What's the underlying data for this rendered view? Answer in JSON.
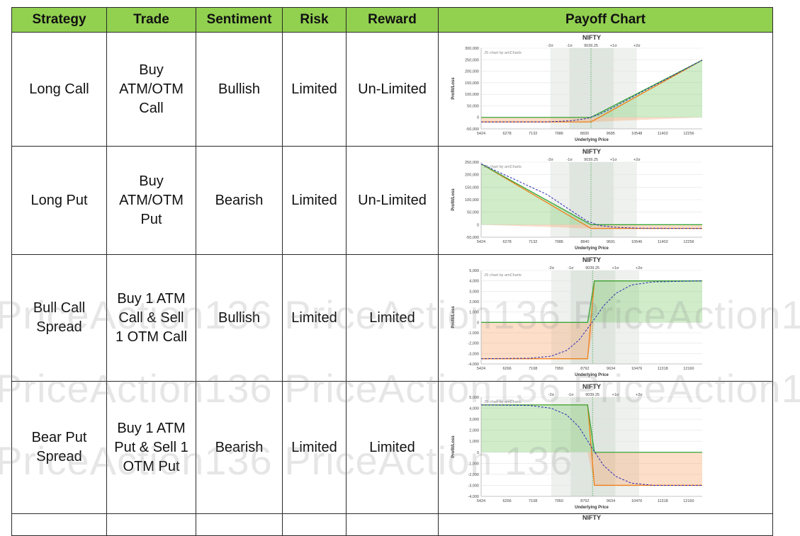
{
  "table": {
    "headers": [
      "Strategy",
      "Trade",
      "Sentiment",
      "Risk",
      "Reward",
      "Payoff Chart"
    ],
    "rows": [
      {
        "strategy": "Long Call",
        "trade": [
          "Buy",
          "ATM/OTM",
          "Call"
        ],
        "sentiment": "Bullish",
        "risk": "Limited",
        "reward": "Un-Limited"
      },
      {
        "strategy": "Long Put",
        "trade": [
          "Buy",
          "ATM/OTM",
          "Put"
        ],
        "sentiment": "Bearish",
        "risk": "Limited",
        "reward": "Un-Limited"
      },
      {
        "strategy": "Bull Call Spread",
        "trade": [
          "Buy 1 ATM",
          "Call & Sell",
          "1 OTM Call"
        ],
        "sentiment": "Bullish",
        "risk": "Limited",
        "reward": "Limited"
      },
      {
        "strategy": "Bear Put Spread",
        "trade": [
          "Buy 1 ATM",
          "Put & Sell 1",
          "OTM Put"
        ],
        "sentiment": "Bearish",
        "risk": "Limited",
        "reward": "Limited"
      }
    ]
  },
  "watermark": {
    "line1": "PriceAction136 PriceAction136 PriceAction136",
    "line2": "PriceAction136 PriceAction136 PriceAction136",
    "line3": "PriceAction136 PriceAction 136"
  },
  "chart_data": [
    {
      "type": "line",
      "title": "NIFTY",
      "xlabel": "Underlying Price",
      "ylabel": "Profit/Loss",
      "credit": "JS chart by amCharts",
      "x_ticks": [
        "5424",
        "6278",
        "7132",
        "7986",
        "8830",
        "9685",
        "10548",
        "11402",
        "12256"
      ],
      "y_ticks": [
        "300,000",
        "250,000",
        "200,000",
        "150,000",
        "100,000",
        "50,000",
        "0",
        "-50,000"
      ],
      "sigma_labels": [
        "-2σ",
        "-1σ",
        "9039.25",
        "+1σ",
        "+2σ"
      ],
      "ylim": [
        -50000,
        300000
      ],
      "xlim": [
        5424,
        12700
      ],
      "spot": 9039.25,
      "sigma_bands": {
        "two": [
          7700,
          10550
        ],
        "one": [
          8330,
          9780
        ]
      },
      "series": [
        {
          "x": [
            5424,
            9039,
            12700
          ],
          "y": [
            -20000,
            -20000,
            248000
          ],
          "color": "#f07f1a"
        },
        {
          "x": [
            5424,
            7600,
            8400,
            8900,
            9300,
            9800,
            10500,
            12700
          ],
          "y": [
            -20000,
            -19500,
            -15000,
            -5000,
            12000,
            45000,
            95000,
            248000
          ],
          "color": "#2a2ab8",
          "dash": true
        }
      ]
    },
    {
      "type": "line",
      "title": "NIFTY",
      "xlabel": "Underlying Price",
      "ylabel": "Profit/Loss",
      "credit": "JS chart by amCharts",
      "x_ticks": [
        "5424",
        "6278",
        "7132",
        "7986",
        "8840",
        "9691",
        "10546",
        "11402",
        "12256"
      ],
      "y_ticks": [
        "250,000",
        "200,000",
        "150,000",
        "100,000",
        "50,000",
        "0",
        "-50,000"
      ],
      "sigma_labels": [
        "-2σ",
        "-1σ",
        "9039.25",
        "+1σ",
        "+2σ"
      ],
      "ylim": [
        -50000,
        250000
      ],
      "xlim": [
        5424,
        12700
      ],
      "spot": 9039.25,
      "sigma_bands": {
        "two": [
          7700,
          10550
        ],
        "one": [
          8330,
          9780
        ]
      },
      "series": [
        {
          "x": [
            5424,
            9039,
            12700
          ],
          "y": [
            243000,
            -15000,
            -15000
          ],
          "color": "#f07f1a"
        },
        {
          "x": [
            5424,
            7600,
            8400,
            8900,
            9300,
            9800,
            10600,
            12700
          ],
          "y": [
            243000,
            120000,
            55000,
            15000,
            -3000,
            -10000,
            -14000,
            -15000
          ],
          "color": "#2a2ab8",
          "dash": true
        }
      ]
    },
    {
      "type": "line",
      "title": "NIFTY",
      "xlabel": "Underlying Price",
      "ylabel": "Profit/Loss",
      "credit": "JS chart by amCharts",
      "x_ticks": [
        "5424",
        "6266",
        "7108",
        "7950",
        "8792",
        "9634",
        "10476",
        "11318",
        "12160"
      ],
      "y_ticks": [
        "5,000",
        "4,000",
        "3,000",
        "2,000",
        "1,000",
        "0",
        "-1,000",
        "-2,000",
        "-3,000",
        "-4,000"
      ],
      "sigma_labels": [
        "-2σ",
        "-1σ",
        "9039.25",
        "+1σ",
        "+2σ"
      ],
      "ylim": [
        -4000,
        5000
      ],
      "xlim": [
        5424,
        12600
      ],
      "spot": 9039.25,
      "sigma_bands": {
        "two": [
          7700,
          10550
        ],
        "one": [
          8330,
          9780
        ]
      },
      "series": [
        {
          "x": [
            5424,
            8880,
            9100,
            12600
          ],
          "y": [
            -3500,
            -3500,
            4000,
            4000
          ],
          "color": "#f07f1a"
        },
        {
          "x": [
            5424,
            7000,
            7700,
            8200,
            8600,
            9000,
            9400,
            9800,
            10300,
            11000,
            12600
          ],
          "y": [
            -3500,
            -3450,
            -3250,
            -2700,
            -1700,
            -100,
            1600,
            2800,
            3600,
            3900,
            4000
          ],
          "color": "#2a2ab8",
          "dash": true
        }
      ]
    },
    {
      "type": "line",
      "title": "NIFTY",
      "xlabel": "Underlying Price",
      "ylabel": "Profit/Loss",
      "credit": "JS chart by amCharts",
      "x_ticks": [
        "5424",
        "6266",
        "7108",
        "7950",
        "8792",
        "9634",
        "10476",
        "11318",
        "12160"
      ],
      "y_ticks": [
        "5,000",
        "4,000",
        "3,000",
        "2,000",
        "1,000",
        "0",
        "-1,000",
        "-2,000",
        "-3,000",
        "-4,000"
      ],
      "sigma_labels": [
        "-2σ",
        "-1σ",
        "9039.25",
        "+1σ",
        "+2σ"
      ],
      "ylim": [
        -4000,
        5000
      ],
      "xlim": [
        5424,
        12600
      ],
      "spot": 9039.25,
      "sigma_bands": {
        "two": [
          7700,
          10550
        ],
        "one": [
          8330,
          9780
        ]
      },
      "series": [
        {
          "x": [
            5424,
            8880,
            9100,
            12600
          ],
          "y": [
            4300,
            4300,
            -3000,
            -3000
          ],
          "color": "#f07f1a"
        },
        {
          "x": [
            5424,
            7000,
            7700,
            8200,
            8600,
            9000,
            9400,
            9800,
            10300,
            11000,
            12600
          ],
          "y": [
            4300,
            4250,
            4000,
            3400,
            2300,
            500,
            -1200,
            -2200,
            -2800,
            -3000,
            -3000
          ],
          "color": "#2a2ab8",
          "dash": true
        }
      ]
    },
    {
      "type": "line",
      "title": "NIFTY"
    }
  ]
}
